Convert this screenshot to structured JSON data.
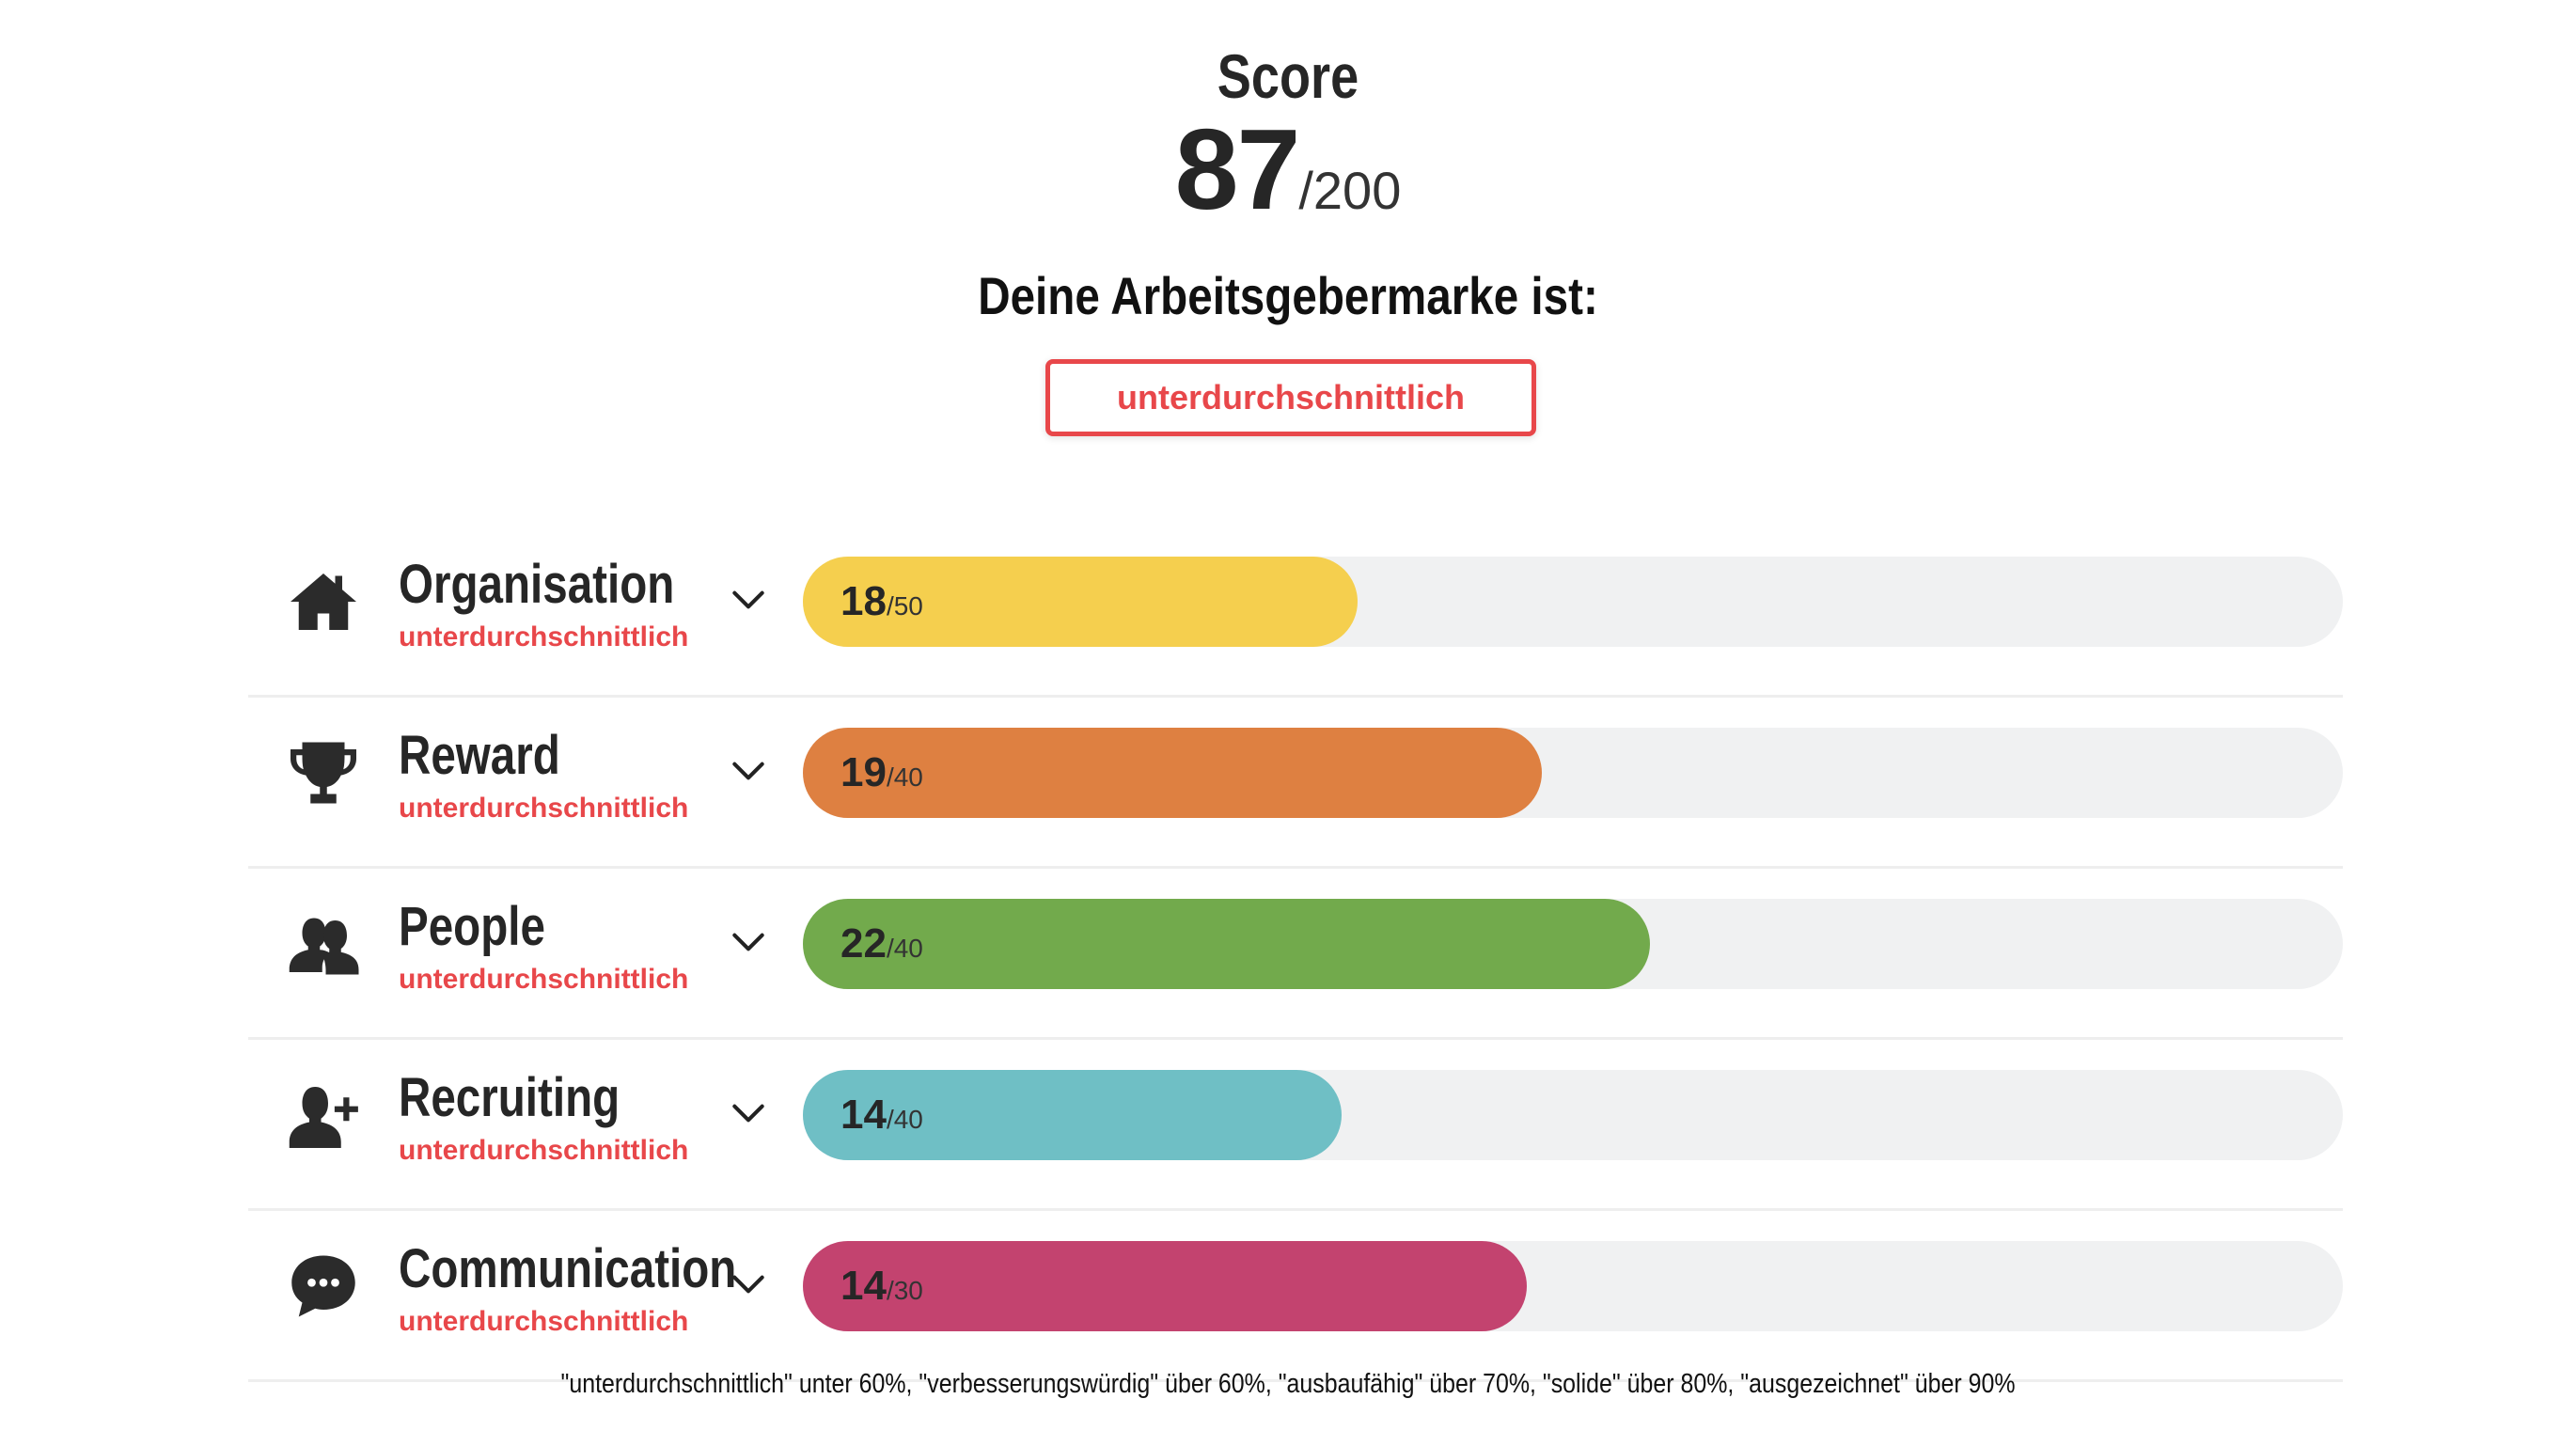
{
  "score": {
    "title": "Score",
    "value": "87",
    "max": "/200"
  },
  "brand": {
    "label": "Deine Arbeitsgebermarke ist:",
    "rating": "unterdurchschnittlich",
    "accent_color": "#e8474a"
  },
  "categories": [
    {
      "name": "Organisation",
      "icon": "home-icon",
      "rating": "unterdurchschnittlich",
      "value": "18",
      "max": "/50",
      "fraction": 0.36,
      "color": "#f5cf4e"
    },
    {
      "name": "Reward",
      "icon": "trophy-icon",
      "rating": "unterdurchschnittlich",
      "value": "19",
      "max": "/40",
      "fraction": 0.48,
      "color": "#de8041"
    },
    {
      "name": "People",
      "icon": "people-icon",
      "rating": "unterdurchschnittlich",
      "value": "22",
      "max": "/40",
      "fraction": 0.55,
      "color": "#72aa4c"
    },
    {
      "name": "Recruiting",
      "icon": "add-user-icon",
      "rating": "unterdurchschnittlich",
      "value": "14",
      "max": "/40",
      "fraction": 0.35,
      "color": "#6fbfc5"
    },
    {
      "name": "Communication",
      "icon": "chat-bubble-icon",
      "rating": "unterdurchschnittlich",
      "value": "14",
      "max": "/30",
      "fraction": 0.47,
      "color": "#c3436f"
    }
  ],
  "footnote": "\"unterdurchschnittlich\" unter 60%, \"verbesserungswürdig\" über 60%, \"ausbaufähig\" über 70%, \"solide\" über 80%, \"ausgezeichnet\" über 90%"
}
